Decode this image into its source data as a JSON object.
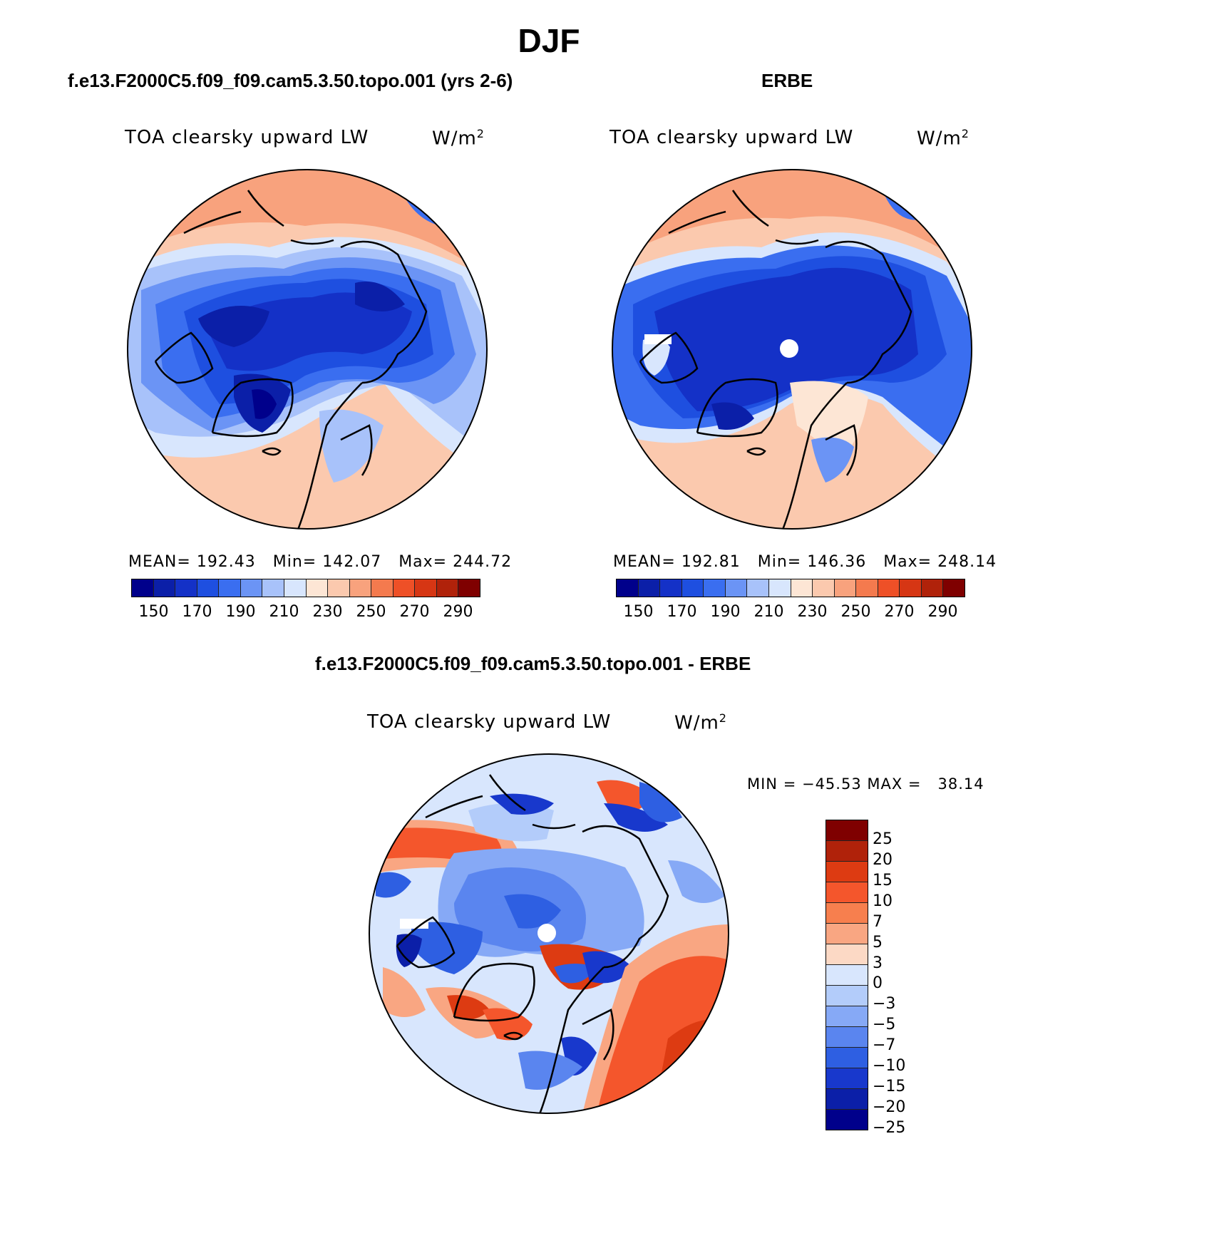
{
  "page_title": "DJF",
  "panels": [
    {
      "header": "f.e13.F2000C5.f09_f09.cam5.3.50.topo.001 (yrs 2-6)",
      "variable": "TOA clearsky upward LW",
      "units": "W/m",
      "units_exp": "2",
      "stats": "MEAN= 192.43   Min= 142.07   Max= 244.72"
    },
    {
      "header": "ERBE",
      "variable": "TOA clearsky upward LW",
      "units": "W/m",
      "units_exp": "2",
      "stats": "MEAN= 192.81   Min= 146.36   Max= 248.14"
    },
    {
      "header": "f.e13.F2000C5.f09_f09.cam5.3.50.topo.001 - ERBE",
      "variable": "TOA clearsky upward LW",
      "units": "W/m",
      "units_exp": "2",
      "stats": "MIN = −45.53 MAX =   38.14"
    }
  ],
  "abs_colorbar": {
    "colors": [
      "#00008b",
      "#0b1fa8",
      "#1431c7",
      "#1e4fe0",
      "#3a6ef0",
      "#6b94f5",
      "#a8c2fa",
      "#d8e6fd",
      "#fde6d5",
      "#fbc9ae",
      "#f8a27d",
      "#f47a4e",
      "#ee5027",
      "#d63614",
      "#b0220a",
      "#7f0000"
    ],
    "labels": [
      "150",
      "170",
      "190",
      "210",
      "230",
      "250",
      "270",
      "290"
    ]
  },
  "diff_colorbar": {
    "colors": [
      "#7f0000",
      "#b0220a",
      "#dd3b12",
      "#f4562c",
      "#f77f4e",
      "#f9a682",
      "#fcd9c5",
      "#d8e6fd",
      "#b3ccfa",
      "#86a9f6",
      "#5a85ef",
      "#2e5fe2",
      "#1838cc",
      "#0b1fa8",
      "#00008b"
    ],
    "labels": [
      "25",
      "20",
      "15",
      "10",
      "7",
      "5",
      "3",
      "0",
      "−3",
      "−5",
      "−7",
      "−10",
      "−15",
      "−20",
      "−25"
    ]
  }
}
